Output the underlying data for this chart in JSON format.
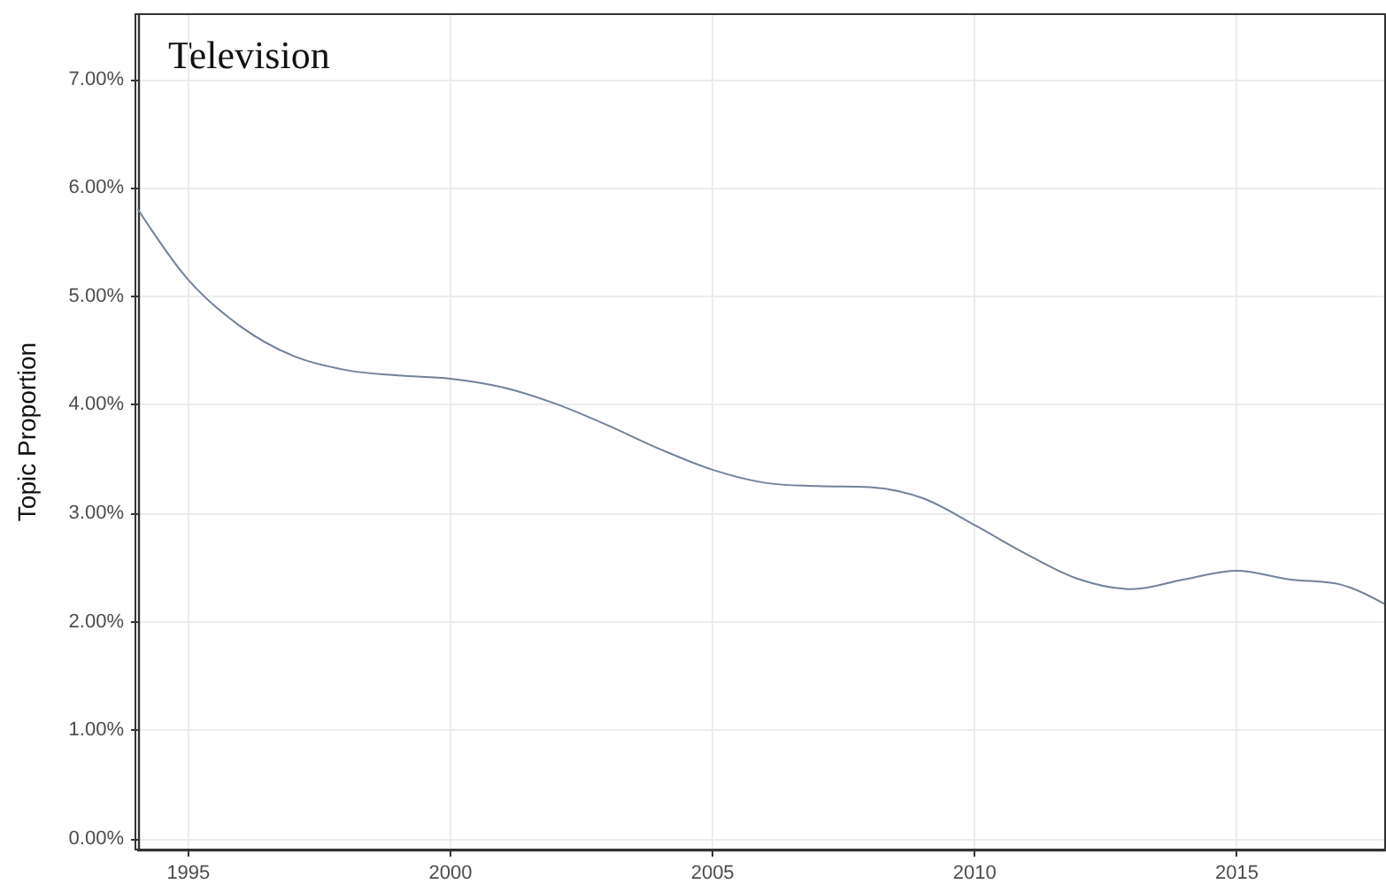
{
  "chart_data": {
    "type": "line",
    "annotations": [
      "Television"
    ],
    "ylabel": "Topic Proportion",
    "x": [
      1994.04,
      1995,
      1996,
      1997,
      1998,
      1999,
      2000,
      2001,
      2002,
      2003,
      2004,
      2005,
      2006,
      2007,
      2008,
      2009,
      2010,
      2011,
      2012,
      2013,
      2014,
      2015,
      2016,
      2017,
      2017.83
    ],
    "series": [
      {
        "color": "#71829a",
        "values": [
          5.8,
          5.15,
          4.72,
          4.45,
          4.32,
          4.27,
          4.24,
          4.16,
          4.01,
          3.81,
          3.59,
          3.4,
          3.28,
          3.25,
          3.24,
          3.14,
          2.89,
          2.62,
          2.39,
          2.3,
          2.39,
          2.47,
          2.39,
          2.34,
          2.16
        ]
      }
    ],
    "xlim": [
      1994.04,
      2017.83
    ],
    "xticks": [
      1995,
      2000,
      2005,
      2010,
      2015
    ],
    "ylim": [
      -0.1,
      7.6
    ],
    "yticks": [
      {
        "value": 0,
        "label": "0.00%"
      },
      {
        "value": 1,
        "label": "1.00%"
      },
      {
        "value": 2,
        "label": "2.00%"
      },
      {
        "value": 3,
        "label": "3.00%"
      },
      {
        "value": 4,
        "label": "4.00%"
      },
      {
        "value": 5,
        "label": "5.00%"
      },
      {
        "value": 6,
        "label": "6.00%"
      },
      {
        "value": 7,
        "label": "7.00%"
      }
    ],
    "grid": true,
    "marker": "none",
    "line_style": "solid"
  }
}
